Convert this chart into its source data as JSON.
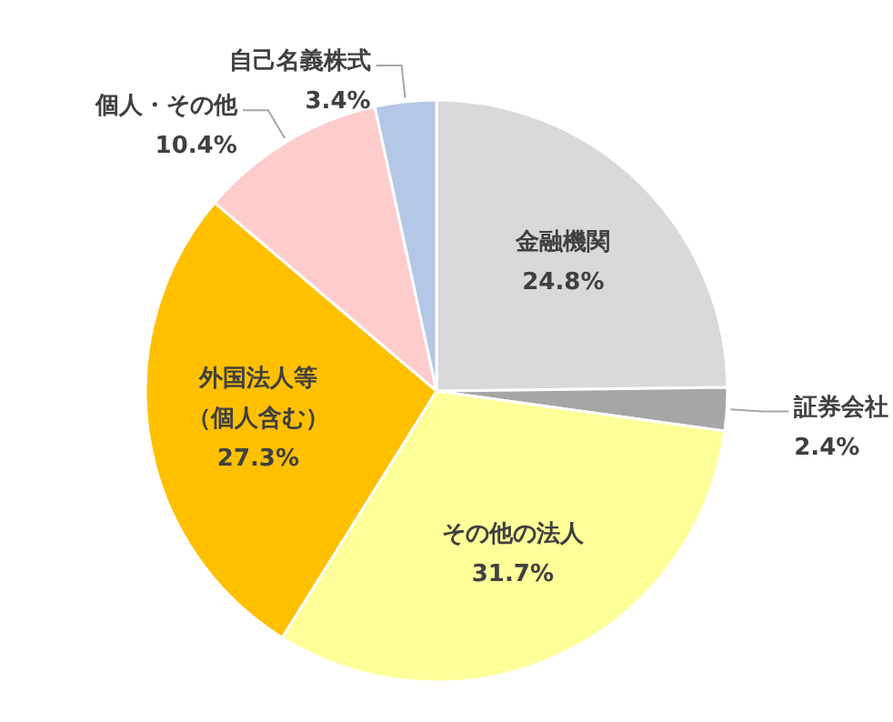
{
  "chart_data": {
    "type": "pie",
    "categories": [
      "金融機関",
      "証券会社",
      "その他の法人",
      "外国法人等（個人含む）",
      "個人・その他",
      "自己名義株式"
    ],
    "values": [
      24.8,
      2.4,
      31.7,
      27.3,
      10.4,
      3.4
    ],
    "value_labels": [
      "24.8%",
      "2.4%",
      "31.7%",
      "27.3%",
      "10.4%",
      "3.4%"
    ],
    "colors": [
      "#d9d9d9",
      "#a6a6a6",
      "#ffff99",
      "#ffc000",
      "#ffcccc",
      "#b4c7e7"
    ]
  }
}
